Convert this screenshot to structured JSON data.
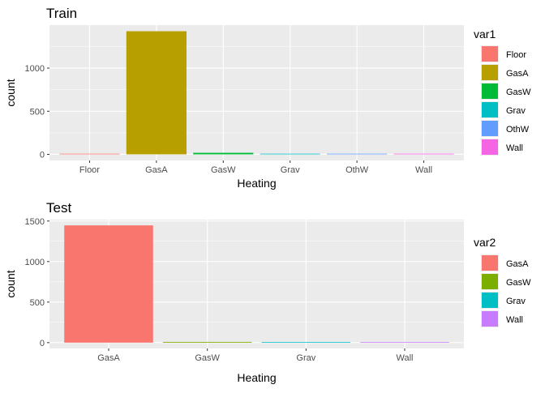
{
  "colors": {
    "panel_bg": "#ebebeb",
    "grid_major": "#ffffff",
    "tick": "#333333"
  },
  "chart_data": [
    {
      "type": "bar",
      "title": "Train",
      "xlabel": "Heating",
      "ylabel": "count",
      "categories": [
        "Floor",
        "GasA",
        "GasW",
        "Grav",
        "OthW",
        "Wall"
      ],
      "values": [
        1,
        1428,
        18,
        7,
        2,
        4
      ],
      "colors": [
        "#F8766D",
        "#B79F00",
        "#00BA38",
        "#00BFC4",
        "#619CFF",
        "#F564E3"
      ],
      "ylim": [
        0,
        1428
      ],
      "yticks": [
        0,
        500,
        1000
      ],
      "grid": true,
      "legend": {
        "title": "var1",
        "position": "right",
        "items": [
          "Floor",
          "GasA",
          "GasW",
          "Grav",
          "OthW",
          "Wall"
        ]
      }
    },
    {
      "type": "bar",
      "title": "Test",
      "xlabel": "Heating",
      "ylabel": "count",
      "categories": [
        "GasA",
        "GasW",
        "Grav",
        "Wall"
      ],
      "values": [
        1446,
        9,
        2,
        3
      ],
      "colors": [
        "#F8766D",
        "#7CAE00",
        "#00BFC4",
        "#C77CFF"
      ],
      "ylim": [
        0,
        1446
      ],
      "yticks": [
        0,
        500,
        1000,
        1500
      ],
      "grid": true,
      "legend": {
        "title": "var2",
        "position": "right",
        "items": [
          "GasA",
          "GasW",
          "Grav",
          "Wall"
        ]
      }
    }
  ]
}
